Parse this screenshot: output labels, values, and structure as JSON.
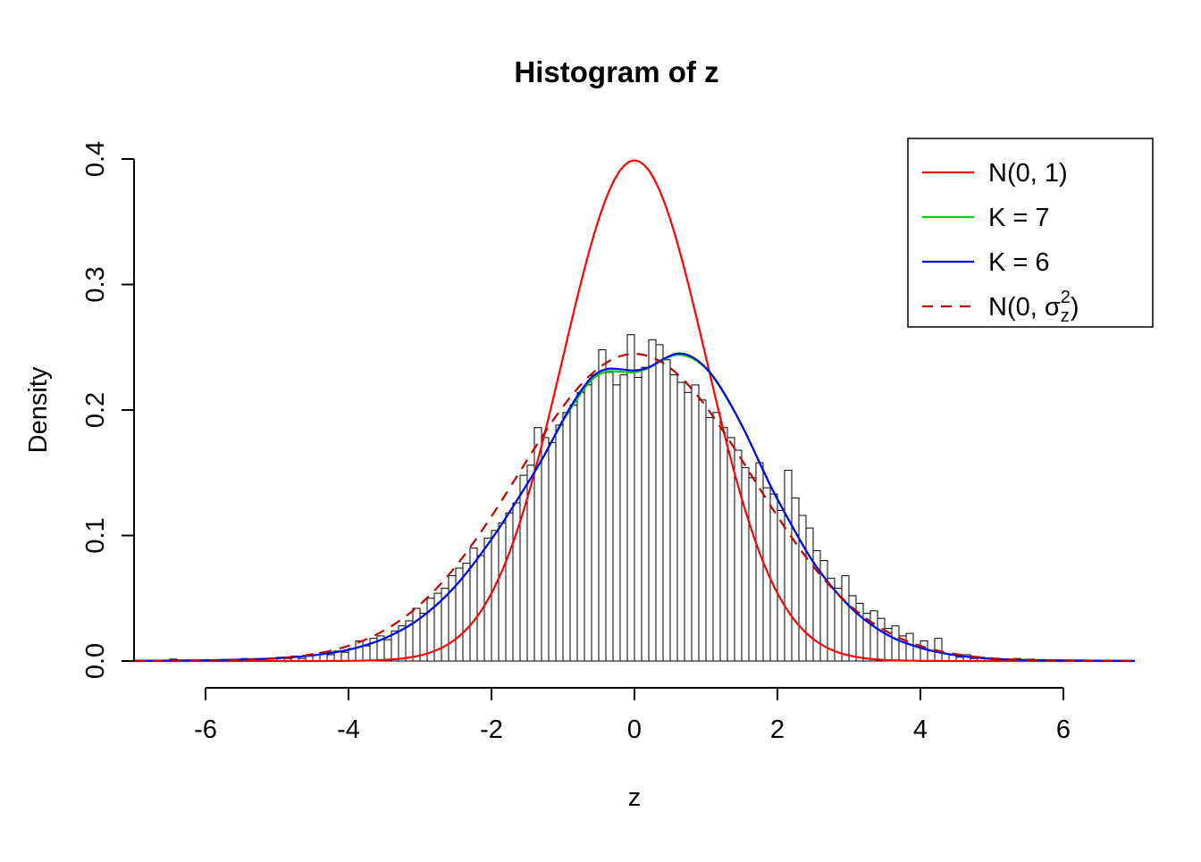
{
  "figure": {
    "background": "#ffffff"
  },
  "chart_data": {
    "type": "bar",
    "subtype": "histogram-with-density-curves",
    "title": "Histogram of z",
    "xlabel": "z",
    "ylabel": "Density",
    "xlim": [
      -7,
      7
    ],
    "ylim": [
      0,
      0.4
    ],
    "grid": false,
    "x_ticks": [
      -6,
      -4,
      -2,
      0,
      2,
      4,
      6
    ],
    "x_tick_labels": [
      "-6",
      "-4",
      "-2",
      "0",
      "2",
      "4",
      "6"
    ],
    "y_ticks": [
      0,
      0.1,
      0.2,
      0.3,
      0.4
    ],
    "y_tick_labels": [
      "0.0",
      "0.1",
      "0.2",
      "0.3",
      "0.4"
    ],
    "histogram": {
      "bin_width": 0.1,
      "first_center": -4.95,
      "bar_fill": "#ffffff",
      "bar_stroke": "#000000",
      "heights": [
        0.003,
        0.002,
        0.004,
        0.002,
        0.004,
        0.005,
        0.007,
        0.005,
        0.008,
        0.007,
        0.01,
        0.016,
        0.012,
        0.018,
        0.02,
        0.017,
        0.024,
        0.028,
        0.032,
        0.042,
        0.038,
        0.05,
        0.054,
        0.058,
        0.068,
        0.074,
        0.078,
        0.09,
        0.084,
        0.098,
        0.104,
        0.11,
        0.118,
        0.126,
        0.148,
        0.156,
        0.186,
        0.178,
        0.174,
        0.188,
        0.198,
        0.204,
        0.214,
        0.22,
        0.228,
        0.248,
        0.23,
        0.22,
        0.228,
        0.26,
        0.226,
        0.234,
        0.256,
        0.252,
        0.24,
        0.228,
        0.222,
        0.214,
        0.22,
        0.208,
        0.194,
        0.198,
        0.186,
        0.178,
        0.168,
        0.154,
        0.146,
        0.158,
        0.138,
        0.133,
        0.12,
        0.152,
        0.13,
        0.116,
        0.106,
        0.088,
        0.08,
        0.066,
        0.058,
        0.068,
        0.052,
        0.046,
        0.038,
        0.04,
        0.034,
        0.026,
        0.028,
        0.02,
        0.022,
        0.012,
        0.016,
        0.008,
        0.018,
        0.006,
        0.005,
        0.003,
        0.005,
        0.002,
        0.003,
        0.002
      ],
      "extra_bars": [
        [
          -6.45,
          0.0015
        ],
        [
          -5.45,
          0.002
        ],
        [
          5.35,
          0.002
        ],
        [
          5.55,
          0.0015
        ]
      ]
    },
    "curves": [
      {
        "name": "N(0, 1)",
        "kind": "normal",
        "mean": 0,
        "sd": 1,
        "color": "#ff0000",
        "dashed": false
      },
      {
        "name": "K = 7",
        "kind": "kde",
        "color": "#00cc00",
        "dashed": false,
        "points": [
          [
            -7,
            0.0002
          ],
          [
            -6,
            0.0006
          ],
          [
            -5.5,
            0.0012
          ],
          [
            -5,
            0.0022
          ],
          [
            -4.5,
            0.0045
          ],
          [
            -4,
            0.009
          ],
          [
            -3.5,
            0.018
          ],
          [
            -3,
            0.034
          ],
          [
            -2.5,
            0.06
          ],
          [
            -2,
            0.097
          ],
          [
            -1.6,
            0.132
          ],
          [
            -1.3,
            0.16
          ],
          [
            -1,
            0.191
          ],
          [
            -0.8,
            0.209
          ],
          [
            -0.6,
            0.224
          ],
          [
            -0.4,
            0.2305
          ],
          [
            -0.2,
            0.2305
          ],
          [
            0,
            0.23
          ],
          [
            0.2,
            0.2335
          ],
          [
            0.4,
            0.24
          ],
          [
            0.6,
            0.244
          ],
          [
            0.8,
            0.2415
          ],
          [
            1,
            0.233
          ],
          [
            1.2,
            0.218
          ],
          [
            1.5,
            0.188
          ],
          [
            1.8,
            0.152
          ],
          [
            2,
            0.129
          ],
          [
            2.5,
            0.079
          ],
          [
            3,
            0.044
          ],
          [
            3.5,
            0.022
          ],
          [
            4,
            0.0105
          ],
          [
            4.5,
            0.0045
          ],
          [
            5,
            0.0018
          ],
          [
            5.5,
            0.0008
          ],
          [
            6,
            0.0004
          ],
          [
            7,
            0.0001
          ]
        ]
      },
      {
        "name": "K = 6",
        "kind": "kde",
        "color": "#0000ff",
        "dashed": false,
        "points": [
          [
            -7,
            0.0002
          ],
          [
            -6,
            0.0006
          ],
          [
            -5.5,
            0.0012
          ],
          [
            -5,
            0.0022
          ],
          [
            -4.5,
            0.0045
          ],
          [
            -4,
            0.009
          ],
          [
            -3.5,
            0.018
          ],
          [
            -3,
            0.034
          ],
          [
            -2.5,
            0.06
          ],
          [
            -2,
            0.097
          ],
          [
            -1.6,
            0.132
          ],
          [
            -1.3,
            0.16
          ],
          [
            -1,
            0.192
          ],
          [
            -0.8,
            0.211
          ],
          [
            -0.6,
            0.226
          ],
          [
            -0.4,
            0.2325
          ],
          [
            -0.2,
            0.2325
          ],
          [
            0,
            0.2315
          ],
          [
            0.2,
            0.234
          ],
          [
            0.4,
            0.2405
          ],
          [
            0.6,
            0.245
          ],
          [
            0.8,
            0.2425
          ],
          [
            1,
            0.2335
          ],
          [
            1.2,
            0.2185
          ],
          [
            1.5,
            0.188
          ],
          [
            1.8,
            0.152
          ],
          [
            2,
            0.129
          ],
          [
            2.5,
            0.079
          ],
          [
            3,
            0.044
          ],
          [
            3.5,
            0.022
          ],
          [
            4,
            0.0105
          ],
          [
            4.5,
            0.0045
          ],
          [
            5,
            0.0018
          ],
          [
            5.5,
            0.0008
          ],
          [
            6,
            0.0004
          ],
          [
            7,
            0.0001
          ]
        ]
      },
      {
        "name": "N(0, σz²)",
        "kind": "normal",
        "mean": 0,
        "sd": 1.63,
        "color": "#c00000",
        "dashed": true
      }
    ],
    "legend": {
      "position": "top-right",
      "entries": [
        {
          "label": "N(0, 1)",
          "color": "#ff0000",
          "dashed": false
        },
        {
          "label": "K = 7",
          "color": "#00cc00",
          "dashed": false
        },
        {
          "label": "K = 6",
          "color": "#0000ff",
          "dashed": false
        },
        {
          "label": "N(0, σz²)",
          "color": "#c00000",
          "dashed": true,
          "label_parts": {
            "pre": "N(0, σ",
            "sub": "z",
            "sup": "2",
            "post": ")"
          }
        }
      ]
    }
  }
}
